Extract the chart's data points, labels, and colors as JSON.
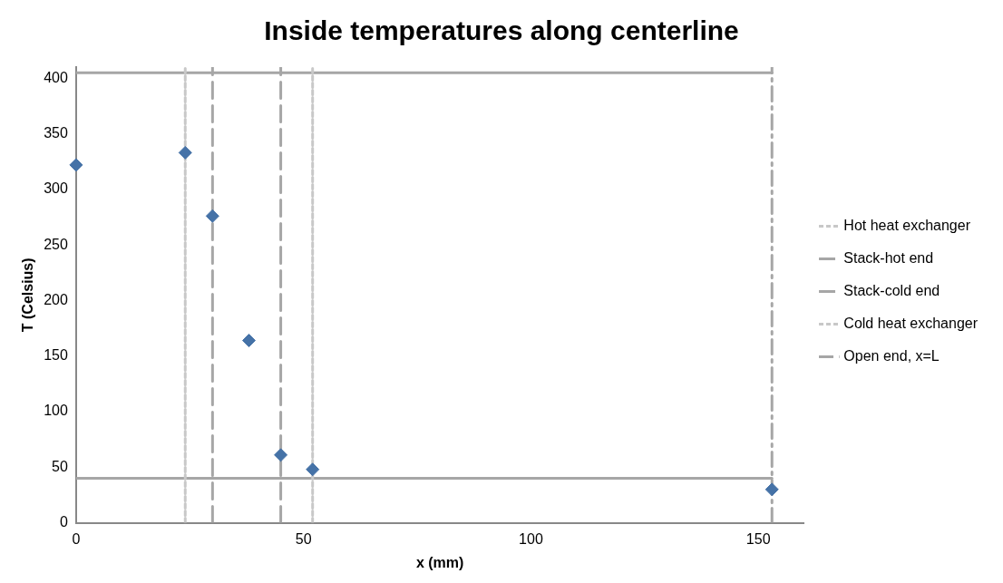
{
  "chart_data": {
    "type": "scatter",
    "title": "Inside temperatures along centerline",
    "xlabel": "x (mm)",
    "ylabel": "T (Celsius)",
    "series": [
      {
        "color": "#4572a7",
        "x": [
          0,
          24,
          30,
          38,
          45,
          52,
          153
        ],
        "values": [
          322,
          333,
          276,
          164,
          61,
          48,
          30
        ],
        "marker": "diamond"
      },
      {
        "type": "line",
        "name": "Hot heat exchanger",
        "color": "#c8c8c8",
        "x": [
          24,
          24
        ],
        "values": [
          0,
          410
        ],
        "line_style": "dotted",
        "marker": "none"
      },
      {
        "type": "line",
        "name": "Stack-hot end",
        "color": "#a6a6a6",
        "x": [
          30,
          30
        ],
        "values": [
          0,
          410
        ],
        "line_style": "dashed",
        "marker": "none"
      },
      {
        "type": "line",
        "name": "Stack-cold end",
        "color": "#a6a6a6",
        "x": [
          45,
          45
        ],
        "values": [
          0,
          410
        ],
        "line_style": "dashed",
        "marker": "none"
      },
      {
        "type": "line",
        "name": "Cold heat exchanger",
        "color": "#c8c8c8",
        "x": [
          52,
          52
        ],
        "values": [
          0,
          410
        ],
        "line_style": "dotted",
        "marker": "none"
      },
      {
        "type": "line",
        "name": "Open end, x=L",
        "color": "#a6a6a6",
        "x": [
          153,
          153
        ],
        "values": [
          0,
          410
        ],
        "line_style": "dashdot",
        "marker": "none"
      },
      {
        "type": "line",
        "color": "#a6a6a6",
        "x": [
          0,
          153
        ],
        "values": [
          40,
          40
        ],
        "line_style": "solid",
        "marker": "none"
      },
      {
        "type": "line",
        "color": "#a6a6a6",
        "x": [
          0,
          153
        ],
        "values": [
          405,
          405
        ],
        "line_style": "solid",
        "marker": "none"
      }
    ],
    "xlim": [
      0,
      160
    ],
    "xticks": [
      0,
      50,
      100,
      150
    ],
    "ylim": [
      0,
      410
    ],
    "yticks": [
      0,
      50,
      100,
      150,
      200,
      250,
      300,
      350,
      400
    ],
    "grid": false,
    "legend": "right"
  }
}
